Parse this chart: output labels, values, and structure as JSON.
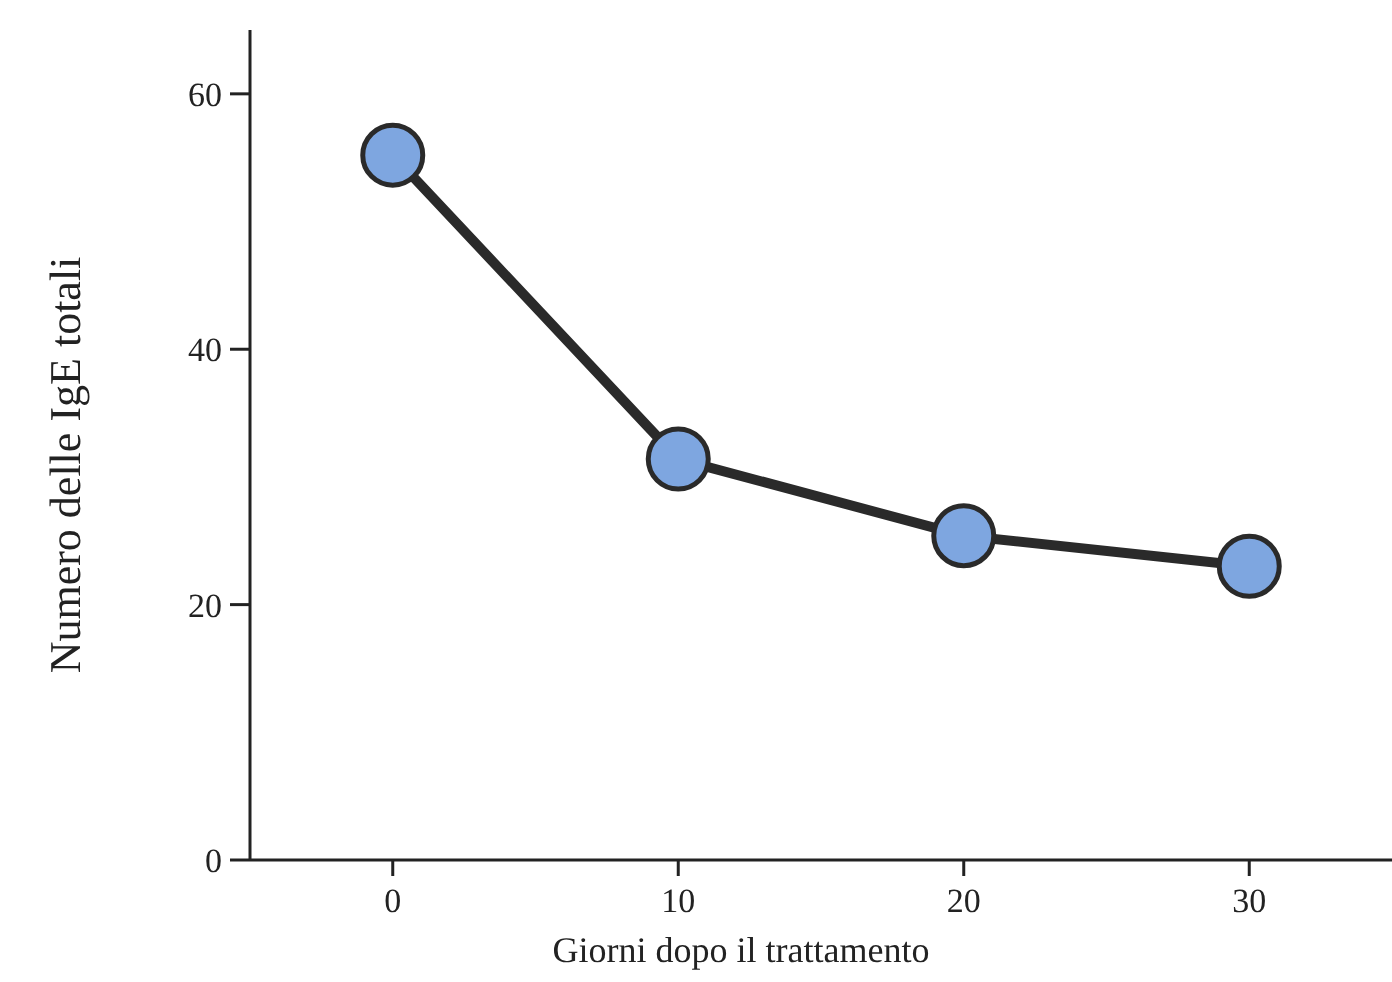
{
  "chart_data": {
    "type": "line",
    "xlabel": "Giorni dopo il trattamento",
    "ylabel": "Numero delle IgE totali",
    "x": [
      0,
      10,
      20,
      30
    ],
    "series": [
      {
        "color": "#7ea6e0",
        "values": [
          55.2,
          31.4,
          25.4,
          23.0
        ]
      }
    ],
    "xlim": [
      -5,
      35
    ],
    "xticks": [
      0,
      10,
      20,
      30
    ],
    "ylim": [
      0,
      65
    ],
    "yticks": [
      0,
      20,
      40,
      60
    ],
    "marker": "circle",
    "line_style": "solid"
  }
}
